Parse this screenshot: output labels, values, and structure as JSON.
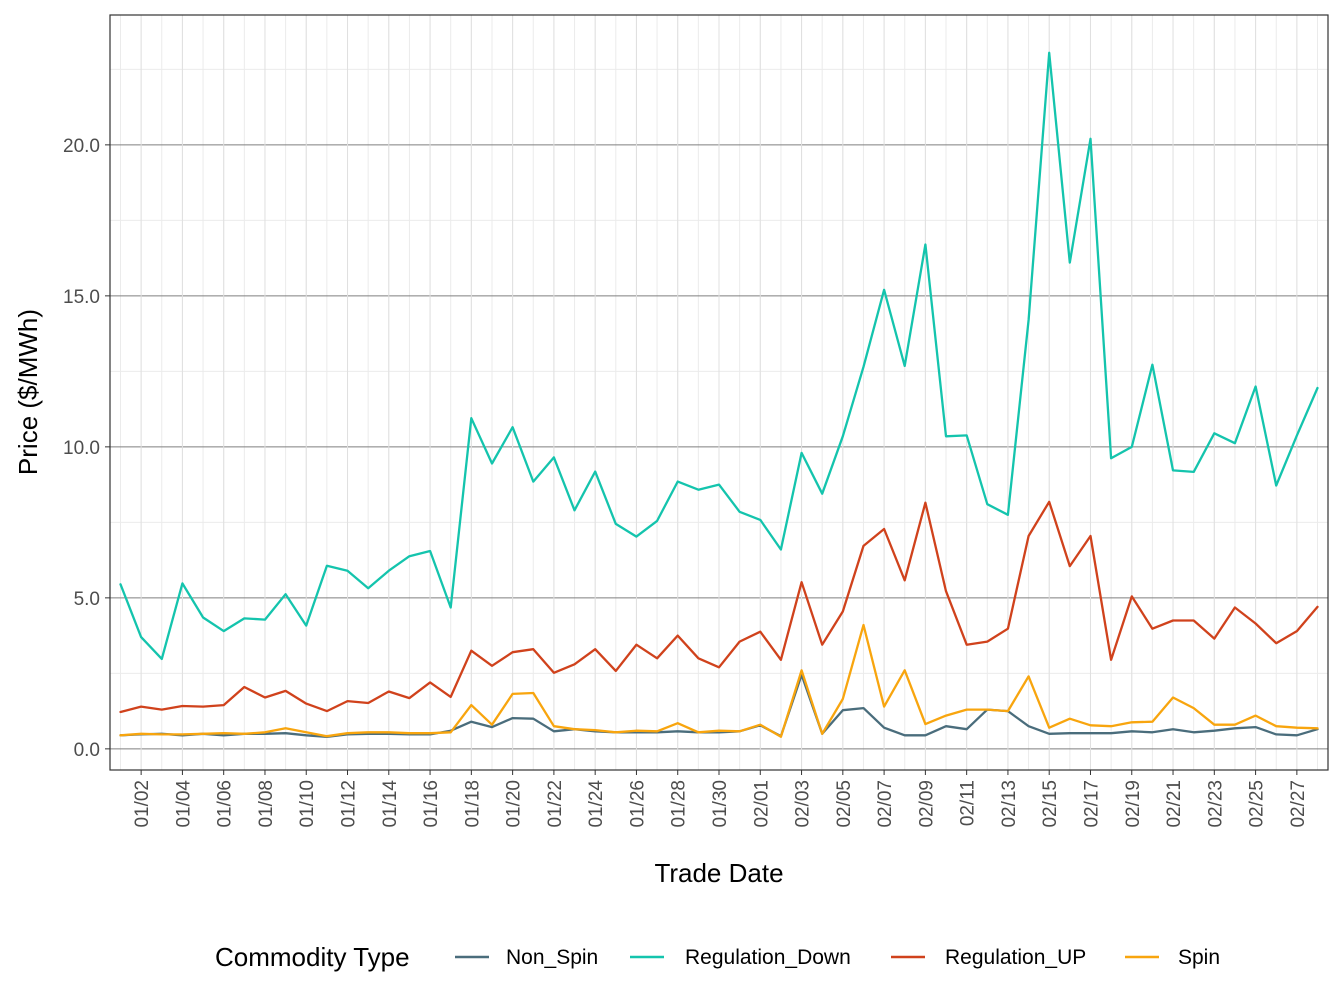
{
  "chart_data": {
    "type": "line",
    "xlabel": "Trade Date",
    "ylabel": "Price ($/MWh)",
    "legend_title": "Commodity Type",
    "legend_position": "bottom",
    "grid": true,
    "ylim": [
      -0.7,
      24.3
    ],
    "yticks": [
      "0.0",
      "5.0",
      "10.0",
      "15.0",
      "20.0"
    ],
    "ytick_values": [
      0,
      5,
      10,
      15,
      20
    ],
    "x": [
      "01/01",
      "01/02",
      "01/03",
      "01/04",
      "01/05",
      "01/06",
      "01/07",
      "01/08",
      "01/09",
      "01/10",
      "01/11",
      "01/12",
      "01/13",
      "01/14",
      "01/15",
      "01/16",
      "01/17",
      "01/18",
      "01/19",
      "01/20",
      "01/21",
      "01/22",
      "01/23",
      "01/24",
      "01/25",
      "01/26",
      "01/27",
      "01/28",
      "01/29",
      "01/30",
      "01/31",
      "02/01",
      "02/02",
      "02/03",
      "02/04",
      "02/05",
      "02/06",
      "02/07",
      "02/08",
      "02/09",
      "02/10",
      "02/11",
      "02/12",
      "02/13",
      "02/14",
      "02/15",
      "02/16",
      "02/17",
      "02/18",
      "02/19",
      "02/20",
      "02/21",
      "02/22",
      "02/23",
      "02/24",
      "02/25",
      "02/26",
      "02/27",
      "02/28"
    ],
    "xticks": [
      "01/02",
      "01/04",
      "01/06",
      "01/08",
      "01/10",
      "01/12",
      "01/14",
      "01/16",
      "01/18",
      "01/20",
      "01/22",
      "01/24",
      "01/26",
      "01/28",
      "01/30",
      "02/01",
      "02/03",
      "02/05",
      "02/07",
      "02/09",
      "02/11",
      "02/13",
      "02/15",
      "02/17",
      "02/19",
      "02/21",
      "02/23",
      "02/25",
      "02/27"
    ],
    "series": [
      {
        "name": "Non_Spin",
        "color": "#4a6d7c",
        "values": [
          0.45,
          0.48,
          0.5,
          0.45,
          0.5,
          0.45,
          0.5,
          0.5,
          0.52,
          0.45,
          0.4,
          0.48,
          0.5,
          0.5,
          0.48,
          0.48,
          0.6,
          0.9,
          0.72,
          1.02,
          1.0,
          0.58,
          0.65,
          0.58,
          0.55,
          0.55,
          0.55,
          0.58,
          0.55,
          0.55,
          0.58,
          0.78,
          0.42,
          2.45,
          0.5,
          1.28,
          1.35,
          0.7,
          0.45,
          0.45,
          0.75,
          0.65,
          1.3,
          1.25,
          0.75,
          0.5,
          0.52,
          0.52,
          0.52,
          0.58,
          0.55,
          0.65,
          0.55,
          0.6,
          0.68,
          0.72,
          0.48,
          0.45,
          0.65
        ]
      },
      {
        "name": "Regulation_Down",
        "color": "#14c4ad",
        "values": [
          5.45,
          3.7,
          2.98,
          5.48,
          4.35,
          3.9,
          4.32,
          4.28,
          5.12,
          4.08,
          6.06,
          5.9,
          5.32,
          5.9,
          6.38,
          6.55,
          4.68,
          10.95,
          9.45,
          10.65,
          8.85,
          9.65,
          7.9,
          9.18,
          7.45,
          7.03,
          7.55,
          8.85,
          8.58,
          8.75,
          7.85,
          7.58,
          6.6,
          9.8,
          8.45,
          10.35,
          12.65,
          15.2,
          12.68,
          16.7,
          10.35,
          10.38,
          8.1,
          7.75,
          14.2,
          23.05,
          16.1,
          20.2,
          9.62,
          10.0,
          12.72,
          9.22,
          9.17,
          10.45,
          10.12,
          12.0,
          8.72,
          10.38,
          11.95
        ]
      },
      {
        "name": "Regulation_UP",
        "color": "#d0421c",
        "values": [
          1.22,
          1.4,
          1.3,
          1.42,
          1.4,
          1.45,
          2.05,
          1.7,
          1.92,
          1.5,
          1.25,
          1.58,
          1.52,
          1.9,
          1.68,
          2.2,
          1.72,
          3.25,
          2.75,
          3.2,
          3.3,
          2.52,
          2.8,
          3.3,
          2.58,
          3.45,
          3.0,
          3.75,
          3.0,
          2.7,
          3.55,
          3.88,
          2.95,
          5.52,
          3.45,
          4.55,
          6.72,
          7.28,
          5.58,
          8.15,
          5.22,
          3.45,
          3.55,
          3.98,
          7.05,
          8.18,
          6.05,
          7.05,
          2.95,
          5.05,
          3.98,
          4.25,
          4.25,
          3.65,
          4.68,
          4.15,
          3.5,
          3.9,
          4.7
        ]
      },
      {
        "name": "Spin",
        "color": "#f8a50e",
        "values": [
          0.45,
          0.5,
          0.48,
          0.48,
          0.5,
          0.52,
          0.5,
          0.55,
          0.68,
          0.55,
          0.42,
          0.52,
          0.55,
          0.55,
          0.52,
          0.52,
          0.55,
          1.45,
          0.8,
          1.82,
          1.85,
          0.75,
          0.65,
          0.62,
          0.55,
          0.6,
          0.58,
          0.85,
          0.55,
          0.6,
          0.58,
          0.8,
          0.4,
          2.6,
          0.5,
          1.65,
          4.1,
          1.4,
          2.6,
          0.82,
          1.1,
          1.3,
          1.3,
          1.25,
          2.4,
          0.7,
          1.0,
          0.78,
          0.75,
          0.88,
          0.9,
          1.7,
          1.35,
          0.8,
          0.8,
          1.1,
          0.75,
          0.7,
          0.68
        ]
      }
    ]
  }
}
